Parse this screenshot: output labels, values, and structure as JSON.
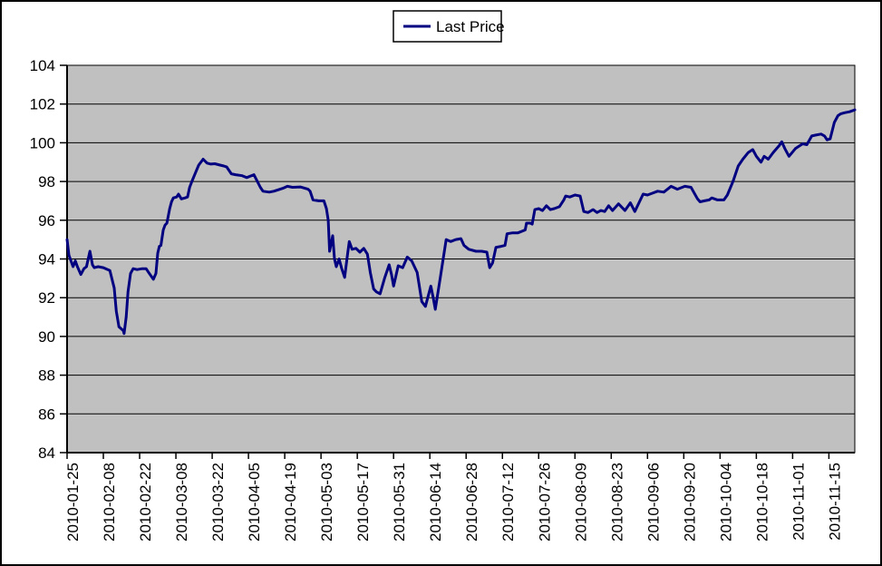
{
  "window": {
    "background": "#ffffff",
    "border_color": "#000000"
  },
  "legend": {
    "label": "Last Price",
    "swatch_color": "#000080"
  },
  "chart_data": {
    "type": "line",
    "title": "",
    "xlabel": "",
    "ylabel": "",
    "legend_position": "top-center",
    "plot": {
      "background": "#c0c0c0",
      "gridline_color": "#000000",
      "axis_color": "#000000",
      "grid": "horizontal",
      "line_width": 3
    },
    "y_axis": {
      "min": 84,
      "max": 104,
      "tick_step": 2,
      "tick_labels": [
        "104",
        "102",
        "100",
        "98",
        "96",
        "94",
        "92",
        "90",
        "88",
        "86",
        "84"
      ]
    },
    "x_axis": {
      "unit": "date",
      "start_date": "2010-01-25",
      "tick_interval_days": 14,
      "range_days": [
        0,
        304
      ],
      "tick_labels": [
        "2010-01-25",
        "2010-02-08",
        "2010-02-22",
        "2010-03-08",
        "2010-03-22",
        "2010-04-05",
        "2010-04-19",
        "2010-05-03",
        "2010-05-17",
        "2010-05-31",
        "2010-06-14",
        "2010-06-28",
        "2010-07-12",
        "2010-07-26",
        "2010-08-09",
        "2010-08-23",
        "2010-09-06",
        "2010-09-20",
        "2010-10-04",
        "2010-10-18",
        "2010-11-01",
        "2010-11-15"
      ]
    },
    "series": [
      {
        "name": "Last Price",
        "color": "#000080",
        "points": [
          [
            0,
            95.0
          ],
          [
            0.7,
            94.2
          ],
          [
            1.5,
            93.9
          ],
          [
            2.3,
            93.6
          ],
          [
            3.2,
            93.9
          ],
          [
            4,
            93.6
          ],
          [
            5.3,
            93.2
          ],
          [
            6.5,
            93.5
          ],
          [
            7.5,
            93.6
          ],
          [
            8.8,
            94.4
          ],
          [
            9.8,
            93.7
          ],
          [
            10.5,
            93.55
          ],
          [
            12,
            93.6
          ],
          [
            14,
            93.55
          ],
          [
            16.5,
            93.4
          ],
          [
            18.2,
            92.5
          ],
          [
            19,
            91.3
          ],
          [
            20,
            90.5
          ],
          [
            21.7,
            90.3
          ],
          [
            22,
            90.15
          ],
          [
            22.8,
            91.0
          ],
          [
            23.5,
            92.3
          ],
          [
            24.5,
            93.25
          ],
          [
            25.5,
            93.5
          ],
          [
            27,
            93.45
          ],
          [
            29,
            93.5
          ],
          [
            30.5,
            93.5
          ],
          [
            31.5,
            93.3
          ],
          [
            33.3,
            92.95
          ],
          [
            34.3,
            93.25
          ],
          [
            35,
            94.3
          ],
          [
            35.6,
            94.65
          ],
          [
            36.2,
            94.7
          ],
          [
            37.1,
            95.5
          ],
          [
            37.8,
            95.75
          ],
          [
            38.5,
            95.85
          ],
          [
            39.6,
            96.6
          ],
          [
            40.3,
            96.95
          ],
          [
            41,
            97.15
          ],
          [
            42.3,
            97.2
          ],
          [
            43,
            97.35
          ],
          [
            44.1,
            97.1
          ],
          [
            45.5,
            97.15
          ],
          [
            46.5,
            97.2
          ],
          [
            47.3,
            97.7
          ],
          [
            48.3,
            98.05
          ],
          [
            49.4,
            98.4
          ],
          [
            50.8,
            98.85
          ],
          [
            52.5,
            99.15
          ],
          [
            54,
            98.95
          ],
          [
            55.5,
            98.9
          ],
          [
            57,
            98.92
          ],
          [
            59,
            98.85
          ],
          [
            60.5,
            98.8
          ],
          [
            61.6,
            98.75
          ],
          [
            63.4,
            98.4
          ],
          [
            65,
            98.35
          ],
          [
            67.6,
            98.3
          ],
          [
            69.3,
            98.2
          ],
          [
            72.1,
            98.35
          ],
          [
            74.6,
            97.7
          ],
          [
            75.6,
            97.5
          ],
          [
            78,
            97.45
          ],
          [
            79.8,
            97.5
          ],
          [
            83.3,
            97.65
          ],
          [
            85,
            97.75
          ],
          [
            87,
            97.7
          ],
          [
            90,
            97.72
          ],
          [
            93,
            97.6
          ],
          [
            93.8,
            97.5
          ],
          [
            94.9,
            97.05
          ],
          [
            97,
            97.0
          ],
          [
            99.1,
            97.0
          ],
          [
            100.1,
            96.6
          ],
          [
            100.8,
            96.0
          ],
          [
            101.3,
            94.4
          ],
          [
            102.5,
            95.2
          ],
          [
            103.2,
            94.0
          ],
          [
            103.9,
            93.6
          ],
          [
            105,
            94.0
          ],
          [
            106,
            93.5
          ],
          [
            107.1,
            93.05
          ],
          [
            108.2,
            94.2
          ],
          [
            108.9,
            94.9
          ],
          [
            110,
            94.5
          ],
          [
            111.5,
            94.55
          ],
          [
            113,
            94.35
          ],
          [
            114.5,
            94.55
          ],
          [
            115.9,
            94.25
          ],
          [
            117,
            93.3
          ],
          [
            118.3,
            92.45
          ],
          [
            119.4,
            92.3
          ],
          [
            120.8,
            92.2
          ],
          [
            122.5,
            93.0
          ],
          [
            124.3,
            93.7
          ],
          [
            125.2,
            93.2
          ],
          [
            126,
            92.6
          ],
          [
            127.8,
            93.65
          ],
          [
            129.5,
            93.55
          ],
          [
            131.3,
            94.1
          ],
          [
            133,
            93.9
          ],
          [
            135.1,
            93.3
          ],
          [
            136.9,
            91.8
          ],
          [
            138.3,
            91.55
          ],
          [
            140.4,
            92.6
          ],
          [
            141.3,
            92.0
          ],
          [
            142.1,
            91.4
          ],
          [
            144,
            93.0
          ],
          [
            146.3,
            95.0
          ],
          [
            148,
            94.9
          ],
          [
            150,
            95.0
          ],
          [
            152,
            95.05
          ],
          [
            153.2,
            94.7
          ],
          [
            155,
            94.5
          ],
          [
            157.8,
            94.4
          ],
          [
            160,
            94.4
          ],
          [
            162,
            94.35
          ],
          [
            163.1,
            93.55
          ],
          [
            164.2,
            93.8
          ],
          [
            165.5,
            94.6
          ],
          [
            167.5,
            94.65
          ],
          [
            169,
            94.7
          ],
          [
            169.8,
            95.3
          ],
          [
            172,
            95.35
          ],
          [
            174,
            95.35
          ],
          [
            176.8,
            95.5
          ],
          [
            177.3,
            95.85
          ],
          [
            178.8,
            95.85
          ],
          [
            179.5,
            95.8
          ],
          [
            180.5,
            96.55
          ],
          [
            182,
            96.6
          ],
          [
            183.5,
            96.5
          ],
          [
            185,
            96.75
          ],
          [
            186.5,
            96.55
          ],
          [
            188,
            96.6
          ],
          [
            190,
            96.7
          ],
          [
            191.7,
            97.05
          ],
          [
            192.4,
            97.25
          ],
          [
            194,
            97.2
          ],
          [
            196,
            97.3
          ],
          [
            198,
            97.25
          ],
          [
            199.4,
            96.45
          ],
          [
            201,
            96.4
          ],
          [
            203,
            96.55
          ],
          [
            204.5,
            96.4
          ],
          [
            206,
            96.5
          ],
          [
            207.5,
            96.45
          ],
          [
            209,
            96.75
          ],
          [
            210.5,
            96.5
          ],
          [
            212.8,
            96.85
          ],
          [
            215.3,
            96.5
          ],
          [
            217.4,
            96.9
          ],
          [
            219.1,
            96.45
          ],
          [
            222.3,
            97.35
          ],
          [
            224,
            97.3
          ],
          [
            226,
            97.4
          ],
          [
            227.9,
            97.5
          ],
          [
            230.3,
            97.45
          ],
          [
            233.1,
            97.75
          ],
          [
            235.5,
            97.6
          ],
          [
            238.4,
            97.75
          ],
          [
            240.8,
            97.7
          ],
          [
            243.3,
            97.1
          ],
          [
            244.3,
            96.95
          ],
          [
            246,
            97.0
          ],
          [
            247.8,
            97.05
          ],
          [
            248.8,
            97.15
          ],
          [
            251,
            97.05
          ],
          [
            253.5,
            97.05
          ],
          [
            254.8,
            97.3
          ],
          [
            257,
            98.0
          ],
          [
            259,
            98.8
          ],
          [
            260.8,
            99.15
          ],
          [
            262.9,
            99.5
          ],
          [
            264.6,
            99.65
          ],
          [
            266,
            99.3
          ],
          [
            267.8,
            99.0
          ],
          [
            269,
            99.3
          ],
          [
            270.6,
            99.15
          ],
          [
            272.5,
            99.5
          ],
          [
            274.8,
            99.85
          ],
          [
            275.8,
            100.05
          ],
          [
            277,
            99.7
          ],
          [
            278.6,
            99.3
          ],
          [
            281.1,
            99.7
          ],
          [
            283.9,
            99.95
          ],
          [
            285.5,
            99.9
          ],
          [
            287.4,
            100.35
          ],
          [
            289,
            100.4
          ],
          [
            291,
            100.45
          ],
          [
            292.3,
            100.35
          ],
          [
            293.3,
            100.15
          ],
          [
            294.5,
            100.2
          ],
          [
            296.1,
            101.05
          ],
          [
            297.5,
            101.4
          ],
          [
            298.6,
            101.5
          ],
          [
            300,
            101.55
          ],
          [
            302,
            101.6
          ],
          [
            304,
            101.7
          ]
        ]
      }
    ]
  }
}
